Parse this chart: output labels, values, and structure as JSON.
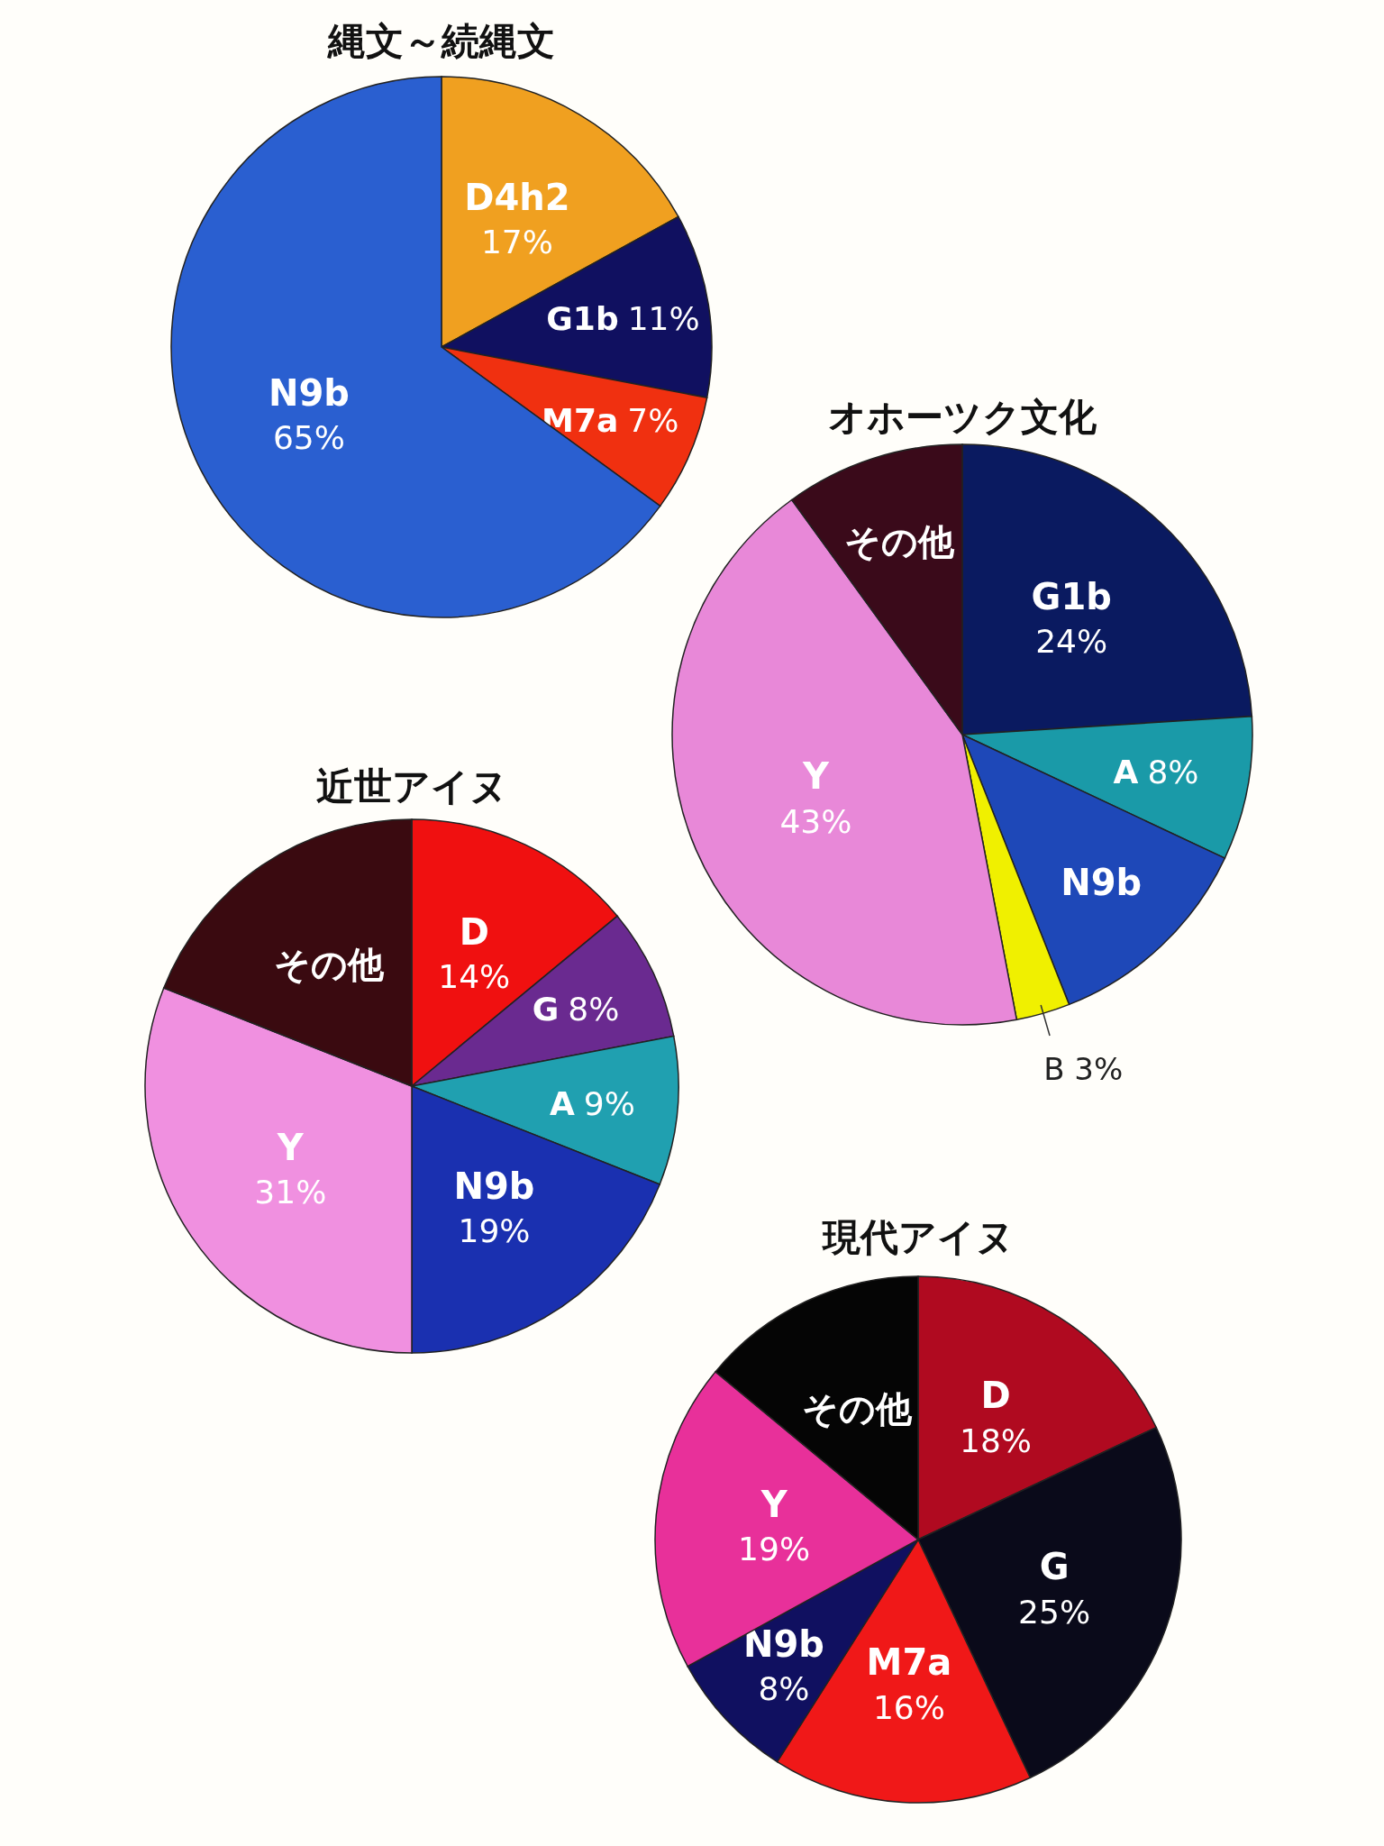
{
  "chart_data": [
    {
      "type": "pie",
      "title": "縄文～続縄文",
      "categories": [
        "D4h2",
        "G1b",
        "M7a",
        "N9b"
      ],
      "values": [
        17,
        11,
        7,
        65
      ],
      "colors": [
        "#f0a020",
        "#101060",
        "#f03010",
        "#2a5fd0"
      ],
      "value_labels": [
        "17%",
        "11%",
        "7%",
        "65%"
      ]
    },
    {
      "type": "pie",
      "title": "オホーツク文化",
      "categories": [
        "G1b",
        "A",
        "N9b",
        "B",
        "Y",
        "その他"
      ],
      "values": [
        24,
        8,
        12,
        3,
        43,
        10
      ],
      "colors": [
        "#0a1a60",
        "#1a9aa8",
        "#1e48b8",
        "#f0f000",
        "#e888d8",
        "#3a0a1a"
      ],
      "value_labels": [
        "24%",
        "8%",
        null,
        "3%",
        "43%",
        null
      ]
    },
    {
      "type": "pie",
      "title": "近世アイヌ",
      "categories": [
        "D",
        "G",
        "A",
        "N9b",
        "Y",
        "その他"
      ],
      "values": [
        14,
        8,
        9,
        19,
        31,
        19
      ],
      "colors": [
        "#f01010",
        "#6a2a90",
        "#20a0b0",
        "#1a30b0",
        "#f090e0",
        "#3a0a10"
      ],
      "value_labels": [
        "14%",
        "8%",
        "9%",
        "19%",
        "31%",
        null
      ]
    },
    {
      "type": "pie",
      "title": "現代アイヌ",
      "categories": [
        "D",
        "G",
        "M7a",
        "N9b",
        "Y",
        "その他"
      ],
      "values": [
        18,
        25,
        16,
        8,
        19,
        14
      ],
      "colors": [
        "#b00a20",
        "#0a0a1a",
        "#f01818",
        "#101060",
        "#e8309a",
        "#050505"
      ],
      "value_labels": [
        "18%",
        "25%",
        "16%",
        "8%",
        "19%",
        null
      ]
    }
  ]
}
